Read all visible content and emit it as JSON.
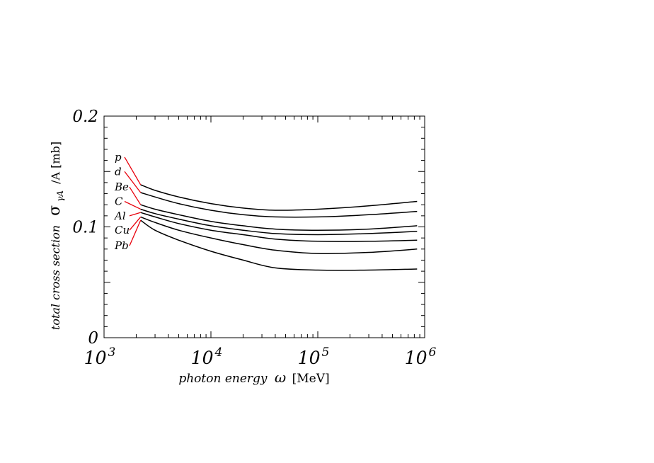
{
  "chart_data": {
    "type": "line",
    "title": "",
    "xlabel_italic": "photon energy",
    "xlabel_symbol": "ω",
    "xlabel_unit": "[MeV]",
    "ylabel_italic": "total cross section",
    "ylabel_symbol": "σ",
    "ylabel_subscript": "γA",
    "ylabel_rest": "/A [mb]",
    "x_scale": "log",
    "xlim": [
      1000,
      1000000
    ],
    "ylim": [
      0,
      0.2
    ],
    "x_ticks": [
      {
        "value": 1000,
        "base": "10",
        "exp": "3"
      },
      {
        "value": 10000,
        "base": "10",
        "exp": "4"
      },
      {
        "value": 100000,
        "base": "10",
        "exp": "5"
      },
      {
        "value": 1000000,
        "base": "10",
        "exp": "6"
      }
    ],
    "y_ticks": [
      {
        "value": 0,
        "label": "0"
      },
      {
        "value": 0.1,
        "label": "0.1"
      },
      {
        "value": 0.2,
        "label": "0.2"
      }
    ],
    "grid": false,
    "series": [
      {
        "name": "p",
        "x": [
          2200,
          3000,
          5000,
          10000,
          20000,
          40000,
          100000,
          300000,
          850000
        ],
        "y": [
          0.138,
          0.133,
          0.127,
          0.121,
          0.117,
          0.115,
          0.116,
          0.119,
          0.123
        ]
      },
      {
        "name": "d",
        "x": [
          2200,
          3000,
          5000,
          10000,
          20000,
          40000,
          100000,
          300000,
          850000
        ],
        "y": [
          0.131,
          0.127,
          0.121,
          0.115,
          0.111,
          0.109,
          0.109,
          0.111,
          0.114
        ]
      },
      {
        "name": "Be",
        "x": [
          2200,
          3000,
          5000,
          10000,
          20000,
          40000,
          100000,
          300000,
          850000
        ],
        "y": [
          0.12,
          0.116,
          0.111,
          0.105,
          0.101,
          0.098,
          0.097,
          0.098,
          0.101
        ]
      },
      {
        "name": "C",
        "x": [
          2200,
          3000,
          5000,
          10000,
          20000,
          40000,
          100000,
          300000,
          850000
        ],
        "y": [
          0.116,
          0.112,
          0.107,
          0.101,
          0.097,
          0.094,
          0.093,
          0.094,
          0.096
        ]
      },
      {
        "name": "Al",
        "x": [
          2200,
          3000,
          5000,
          10000,
          20000,
          40000,
          100000,
          300000,
          850000
        ],
        "y": [
          0.113,
          0.109,
          0.103,
          0.097,
          0.093,
          0.089,
          0.087,
          0.087,
          0.088
        ]
      },
      {
        "name": "Cu",
        "x": [
          2200,
          3000,
          5000,
          10000,
          20000,
          40000,
          100000,
          300000,
          850000
        ],
        "y": [
          0.109,
          0.104,
          0.097,
          0.09,
          0.084,
          0.079,
          0.076,
          0.077,
          0.08
        ]
      },
      {
        "name": "Pb",
        "x": [
          2200,
          3000,
          5000,
          10000,
          20000,
          40000,
          100000,
          300000,
          850000
        ],
        "y": [
          0.106,
          0.097,
          0.088,
          0.078,
          0.07,
          0.063,
          0.061,
          0.061,
          0.062
        ]
      }
    ],
    "annotations": [
      {
        "label": "p",
        "y": 0.163,
        "colour": "#e8000b"
      },
      {
        "label": "d",
        "y": 0.15,
        "colour": "#e8000b"
      },
      {
        "label": "Be",
        "y": 0.136,
        "colour": "#e8000b"
      },
      {
        "label": "C",
        "y": 0.123,
        "colour": "#e8000b"
      },
      {
        "label": "Al",
        "y": 0.11,
        "colour": "#e8000b"
      },
      {
        "label": "Cu",
        "y": 0.097,
        "colour": "#e8000b"
      },
      {
        "label": "Pb",
        "y": 0.083,
        "colour": "#e8000b"
      }
    ],
    "line_colour": "#000000"
  }
}
